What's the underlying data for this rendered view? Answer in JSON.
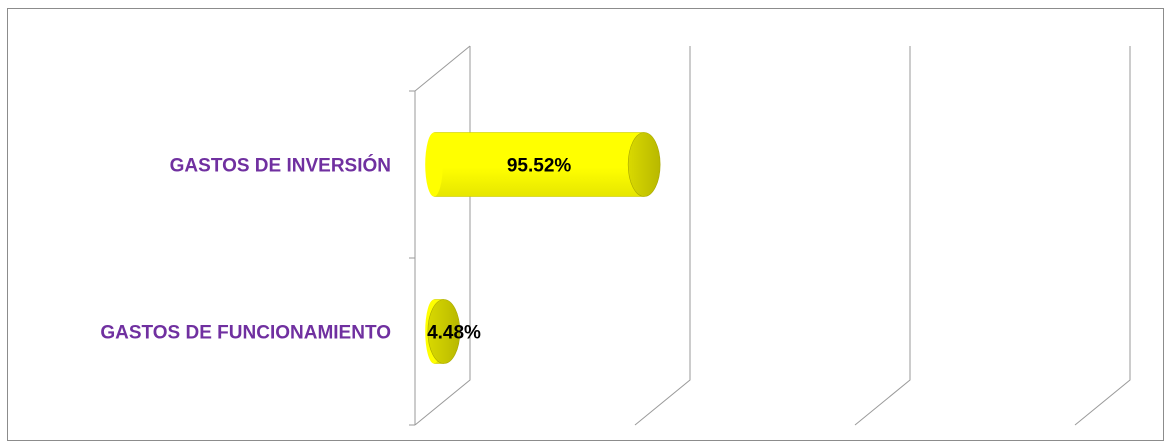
{
  "chart_data": {
    "type": "bar",
    "orientation": "horizontal",
    "style": "3d-cylinder",
    "categories": [
      "GASTOS DE INVERSIÓN",
      "GASTOS DE FUNCIONAMIENTO"
    ],
    "values": [
      95.52,
      4.48
    ],
    "data_labels": [
      "95.52%",
      "4.48%"
    ],
    "title": "",
    "xlabel": "",
    "ylabel": "",
    "xlim": [
      0,
      300
    ],
    "grid": true,
    "legend": "none"
  },
  "colors": {
    "bar_fill": "#ffff00",
    "bar_shadow": "#b8b800",
    "category_label": "#7030a0",
    "gridline": "#9a9a9a",
    "frame": "#8c8c8c"
  }
}
